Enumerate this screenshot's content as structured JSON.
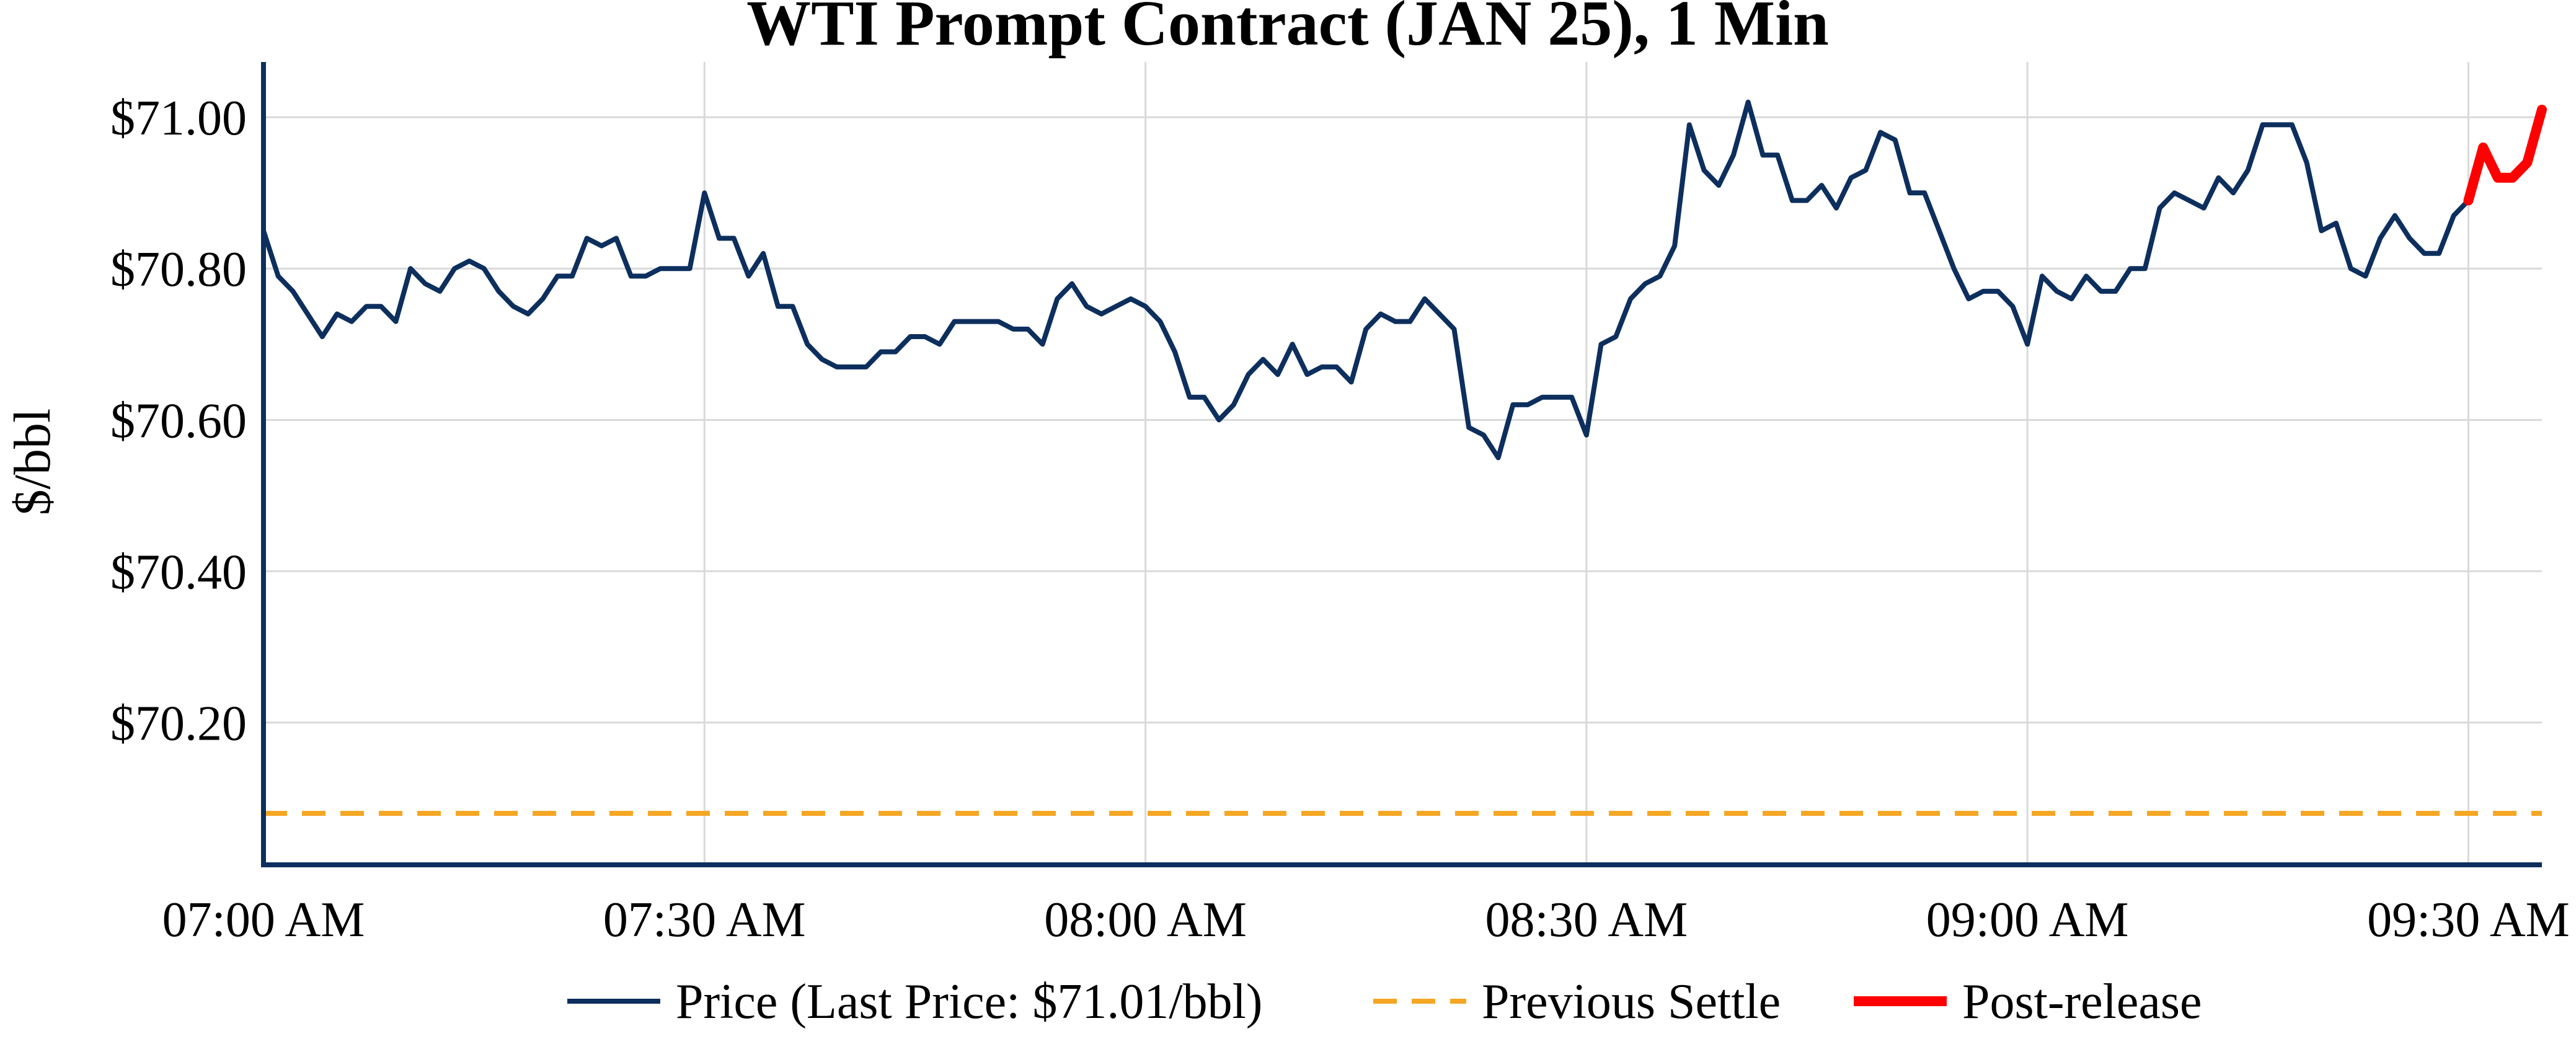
{
  "chart_data": {
    "type": "line",
    "title": "WTI Prompt Contract (JAN 25), 1 Min",
    "xlabel": "",
    "ylabel": "$/bbl",
    "x_start": "07:00 AM",
    "x_end": "09:34 AM",
    "x_interval_minutes": 1,
    "xlim_minutes_after_start": [
      0,
      155
    ],
    "ylim": [
      70.012,
      71.073
    ],
    "grid": true,
    "xticks": [
      {
        "minutes": 0,
        "label": "07:00 AM"
      },
      {
        "minutes": 30,
        "label": "07:30 AM"
      },
      {
        "minutes": 60,
        "label": "08:00 AM"
      },
      {
        "minutes": 90,
        "label": "08:30 AM"
      },
      {
        "minutes": 120,
        "label": "09:00 AM"
      },
      {
        "minutes": 150,
        "label": "09:30 AM"
      }
    ],
    "yticks": [
      {
        "value": 70.2,
        "label": "$70.20"
      },
      {
        "value": 70.4,
        "label": "$70.40"
      },
      {
        "value": 70.6,
        "label": "$70.60"
      },
      {
        "value": 70.8,
        "label": "$70.80"
      },
      {
        "value": 71.0,
        "label": "$71.00"
      }
    ],
    "series": [
      {
        "name": "Price (Last Price: $71.01/bbl)",
        "style": "solid",
        "color": "#0d2f5e",
        "values": [
          70.85,
          70.79,
          70.77,
          70.74,
          70.71,
          70.74,
          70.73,
          70.75,
          70.75,
          70.73,
          70.8,
          70.78,
          70.77,
          70.8,
          70.81,
          70.8,
          70.77,
          70.75,
          70.74,
          70.76,
          70.79,
          70.79,
          70.84,
          70.83,
          70.84,
          70.79,
          70.79,
          70.8,
          70.8,
          70.8,
          70.9,
          70.84,
          70.84,
          70.79,
          70.82,
          70.75,
          70.75,
          70.7,
          70.68,
          70.67,
          70.67,
          70.67,
          70.69,
          70.69,
          70.71,
          70.71,
          70.7,
          70.73,
          70.73,
          70.73,
          70.73,
          70.72,
          70.72,
          70.7,
          70.76,
          70.78,
          70.75,
          70.74,
          70.75,
          70.76,
          70.75,
          70.73,
          70.69,
          70.63,
          70.63,
          70.6,
          70.62,
          70.66,
          70.68,
          70.66,
          70.7,
          70.66,
          70.67,
          70.67,
          70.65,
          70.72,
          70.74,
          70.73,
          70.73,
          70.76,
          70.74,
          70.72,
          70.59,
          70.58,
          70.55,
          70.62,
          70.62,
          70.63,
          70.63,
          70.63,
          70.58,
          70.7,
          70.71,
          70.76,
          70.78,
          70.79,
          70.83,
          70.99,
          70.93,
          70.91,
          70.95,
          71.02,
          70.95,
          70.95,
          70.89,
          70.89,
          70.91,
          70.88,
          70.92,
          70.93,
          70.98,
          70.97,
          70.9,
          70.9,
          70.85,
          70.8,
          70.76,
          70.77,
          70.77,
          70.75,
          70.7,
          70.79,
          70.77,
          70.76,
          70.79,
          70.77,
          70.77,
          70.8,
          70.8,
          70.88,
          70.9,
          70.89,
          70.88,
          70.92,
          70.9,
          70.93,
          70.99,
          70.99,
          70.99,
          70.94,
          70.85,
          70.86,
          70.8,
          70.79,
          70.84,
          70.87,
          70.84,
          70.82,
          70.82,
          70.87,
          70.89
        ]
      },
      {
        "name": "Previous Settle",
        "style": "dashed",
        "color": "#f5a623",
        "values": [
          70.08
        ]
      },
      {
        "name": "Post-release",
        "style": "solid-thick",
        "color": "#ff0000",
        "x_start_minutes": 150,
        "values": [
          70.89,
          70.96,
          70.92,
          70.92,
          70.94,
          71.01
        ]
      }
    ],
    "legend": {
      "placement": "bottom-center"
    },
    "colors": {
      "axis": "#0d2f5e",
      "grid": "#d9d9d9"
    }
  }
}
